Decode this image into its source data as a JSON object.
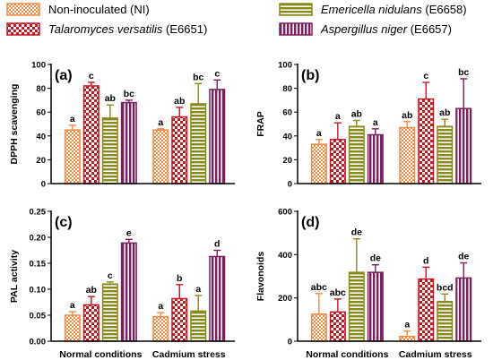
{
  "colors": {
    "NI": "#f08a43",
    "E6651": "#c8141c",
    "E6658": "#8a8a18",
    "E6657": "#7a1f5c"
  },
  "legend": [
    {
      "key": "NI",
      "parts": [
        {
          "t": "Non-inoculated (NI)",
          "i": false
        }
      ],
      "pattern": "checker-small"
    },
    {
      "key": "E6651",
      "parts": [
        {
          "t": "Talaromyces versatilis",
          "i": true
        },
        {
          "t": " (E6651)",
          "i": false
        }
      ],
      "pattern": "checker-large"
    },
    {
      "key": "E6658",
      "parts": [
        {
          "t": "Emericella nidulans",
          "i": true
        },
        {
          "t": " (E6658)",
          "i": false
        }
      ],
      "pattern": "hstripes"
    },
    {
      "key": "E6657",
      "parts": [
        {
          "t": "Aspergillus niger",
          "i": true
        },
        {
          "t": " (E6657)",
          "i": false
        }
      ],
      "pattern": "vstripes"
    }
  ],
  "chart_data": [
    {
      "type": "bar",
      "panel_label": "(a)",
      "ylabel": "DPPH scavenging",
      "ylim": [
        0,
        100
      ],
      "yticks": [
        0,
        20,
        40,
        60,
        80,
        100
      ],
      "tick_labels": [
        "0",
        "20",
        "40",
        "60",
        "80",
        "100"
      ],
      "categories": [
        "Normal conditions",
        "Cadmium stress"
      ],
      "series": [
        {
          "key": "NI",
          "values": [
            45,
            45
          ],
          "errors": [
            4,
            1
          ],
          "letters": [
            "a",
            "a"
          ]
        },
        {
          "key": "E6651",
          "values": [
            82,
            56
          ],
          "errors": [
            3,
            8
          ],
          "letters": [
            "c",
            "ab"
          ]
        },
        {
          "key": "E6658",
          "values": [
            55,
            67
          ],
          "errors": [
            11,
            17
          ],
          "letters": [
            "ab",
            "bc"
          ]
        },
        {
          "key": "E6657",
          "values": [
            68,
            79
          ],
          "errors": [
            2,
            8
          ],
          "letters": [
            "bc",
            "c"
          ]
        }
      ]
    },
    {
      "type": "bar",
      "panel_label": "(b)",
      "ylabel": "FRAP",
      "ylim": [
        0,
        100
      ],
      "yticks": [
        0,
        20,
        40,
        60,
        80,
        100
      ],
      "tick_labels": [
        "0",
        "20",
        "40",
        "60",
        "80",
        "100"
      ],
      "categories": [
        "Normal conditions",
        "Cadmium stress"
      ],
      "series": [
        {
          "key": "NI",
          "values": [
            33,
            47
          ],
          "errors": [
            4,
            5
          ],
          "letters": [
            "a",
            "ab"
          ]
        },
        {
          "key": "E6651",
          "values": [
            37,
            71
          ],
          "errors": [
            14,
            14
          ],
          "letters": [
            "a",
            "c"
          ]
        },
        {
          "key": "E6658",
          "values": [
            48,
            48
          ],
          "errors": [
            5,
            6
          ],
          "letters": [
            "ab",
            "ab"
          ]
        },
        {
          "key": "E6657",
          "values": [
            41,
            63
          ],
          "errors": [
            5,
            25
          ],
          "letters": [
            "a",
            "bc"
          ]
        }
      ]
    },
    {
      "type": "bar",
      "panel_label": "(c)",
      "ylabel": "PAL activity",
      "ylim": [
        0,
        0.25
      ],
      "yticks": [
        0,
        0.05,
        0.1,
        0.15,
        0.2,
        0.25
      ],
      "tick_labels": [
        "0.00",
        "0.05",
        "0.10",
        "0.15",
        "0.20",
        "0.25"
      ],
      "categories": [
        "Normal conditions",
        "Cadmium stress"
      ],
      "series": [
        {
          "key": "NI",
          "values": [
            0.05,
            0.047
          ],
          "errors": [
            0.007,
            0.008
          ],
          "letters": [
            "a",
            "a"
          ]
        },
        {
          "key": "E6651",
          "values": [
            0.07,
            0.082
          ],
          "errors": [
            0.016,
            0.027
          ],
          "letters": [
            "ab",
            "b"
          ]
        },
        {
          "key": "E6658",
          "values": [
            0.11,
            0.058
          ],
          "errors": [
            0.004,
            0.03
          ],
          "letters": [
            "c",
            "a"
          ]
        },
        {
          "key": "E6657",
          "values": [
            0.189,
            0.163
          ],
          "errors": [
            0.007,
            0.012
          ],
          "letters": [
            "e",
            "d"
          ]
        }
      ]
    },
    {
      "type": "bar",
      "panel_label": "(d)",
      "ylabel": "Flavonoids",
      "ylim": [
        0,
        600
      ],
      "yticks": [
        0,
        200,
        400,
        600
      ],
      "tick_labels": [
        "0",
        "200",
        "400",
        "600"
      ],
      "categories": [
        "Normal conditions",
        "Cadmium stress"
      ],
      "series": [
        {
          "key": "NI",
          "values": [
            125,
            22
          ],
          "errors": [
            95,
            25
          ],
          "letters": [
            "abc",
            "a"
          ]
        },
        {
          "key": "E6651",
          "values": [
            135,
            287
          ],
          "errors": [
            60,
            55
          ],
          "letters": [
            "abc",
            "d"
          ]
        },
        {
          "key": "E6658",
          "values": [
            318,
            183
          ],
          "errors": [
            155,
            35
          ],
          "letters": [
            "de",
            "bcd"
          ]
        },
        {
          "key": "E6657",
          "values": [
            318,
            292
          ],
          "errors": [
            35,
            70
          ],
          "letters": [
            "de",
            "de"
          ]
        }
      ]
    }
  ]
}
